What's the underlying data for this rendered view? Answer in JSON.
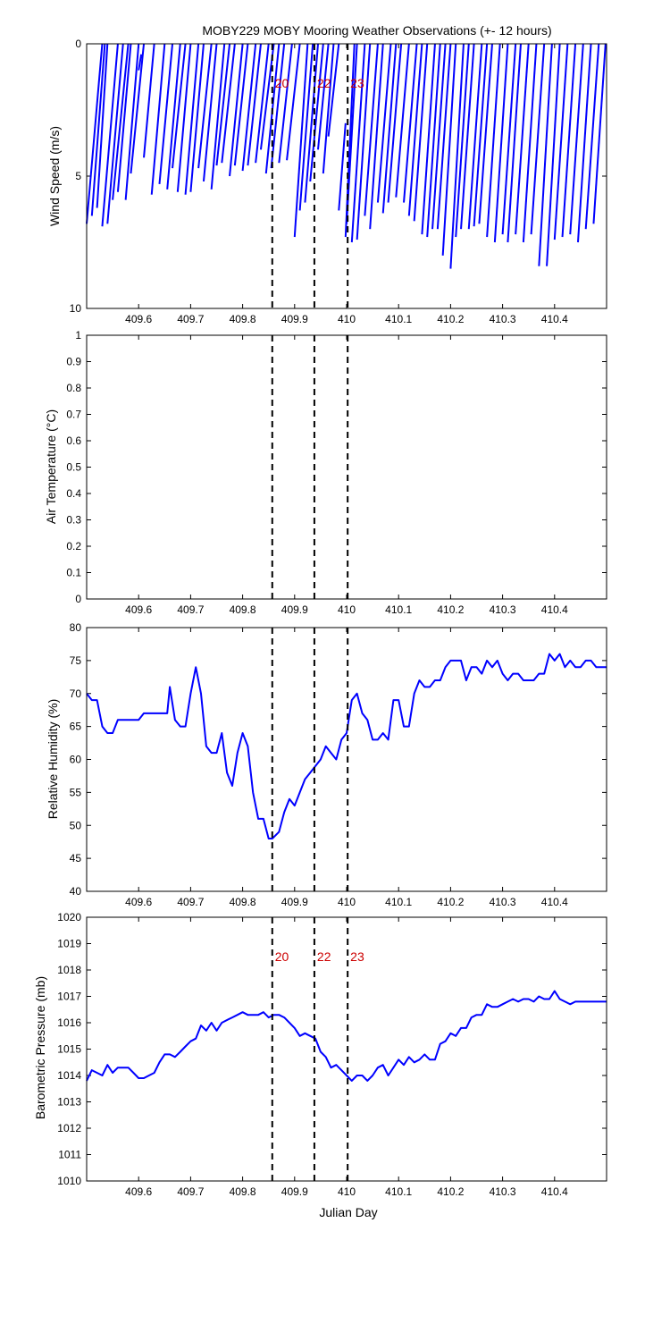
{
  "title": "MOBY229 MOBY Mooring Weather Observations (+- 12 hours)",
  "xlabel": "Julian Day",
  "colors": {
    "line": "#0000ff",
    "vline": "#000000",
    "vline_label": "#cc0000"
  },
  "event_lines": [
    {
      "x": 409.857,
      "label": "20"
    },
    {
      "x": 409.938,
      "label": "22"
    },
    {
      "x": 410.002,
      "label": "23"
    }
  ],
  "x_ticks": [
    "409.6",
    "409.7",
    "409.8",
    "409.9",
    "410",
    "410.1",
    "410.2",
    "410.3",
    "410.4"
  ],
  "chart_data": [
    {
      "type": "line",
      "id": "wind",
      "ylabel": "Wind Speed (m/s)",
      "xlim": [
        409.5,
        410.5
      ],
      "ylim": [
        0,
        10
      ],
      "y_reversed": true,
      "y_ticks": [
        "0",
        "5",
        "10"
      ],
      "show_vline_labels": true,
      "sticks": [
        [
          409.5,
          6.8,
          409.53,
          0.0
        ],
        [
          409.51,
          6.5,
          409.535,
          0.0
        ],
        [
          409.52,
          6.2,
          409.54,
          0.0
        ],
        [
          409.53,
          6.9,
          409.56,
          0.0
        ],
        [
          409.54,
          6.8,
          409.57,
          0.0
        ],
        [
          409.55,
          5.9,
          409.58,
          0.0
        ],
        [
          409.56,
          5.6,
          409.585,
          0.0
        ],
        [
          409.575,
          5.9,
          409.6,
          0.0
        ],
        [
          409.585,
          4.9,
          409.61,
          0.0
        ],
        [
          409.6,
          1.0,
          409.605,
          0.4
        ],
        [
          409.61,
          4.3,
          409.63,
          0.0
        ],
        [
          409.625,
          5.7,
          409.65,
          0.0
        ],
        [
          409.64,
          5.3,
          409.665,
          0.0
        ],
        [
          409.655,
          5.5,
          409.68,
          0.0
        ],
        [
          409.665,
          4.7,
          409.69,
          0.0
        ],
        [
          409.675,
          5.6,
          409.7,
          0.0
        ],
        [
          409.69,
          5.7,
          409.715,
          0.0
        ],
        [
          409.7,
          5.6,
          409.725,
          0.0
        ],
        [
          409.715,
          4.7,
          409.74,
          0.0
        ],
        [
          409.725,
          5.2,
          409.75,
          0.0
        ],
        [
          409.74,
          5.5,
          409.765,
          0.0
        ],
        [
          409.75,
          4.6,
          409.775,
          0.0
        ],
        [
          409.76,
          4.5,
          409.785,
          0.0
        ],
        [
          409.775,
          5.0,
          409.8,
          0.0
        ],
        [
          409.785,
          4.6,
          409.81,
          0.0
        ],
        [
          409.8,
          4.8,
          409.825,
          0.0
        ],
        [
          409.81,
          4.6,
          409.835,
          0.0
        ],
        [
          409.825,
          4.5,
          409.85,
          0.0
        ],
        [
          409.835,
          4.0,
          409.86,
          0.0
        ],
        [
          409.845,
          4.9,
          409.87,
          0.0
        ],
        [
          409.855,
          4.7,
          409.88,
          0.0
        ],
        [
          409.87,
          4.5,
          409.895,
          0.0
        ],
        [
          409.885,
          4.4,
          409.91,
          0.0
        ],
        [
          409.9,
          7.3,
          409.925,
          0.0
        ],
        [
          409.91,
          6.3,
          409.935,
          0.0
        ],
        [
          409.92,
          6.0,
          409.945,
          0.0
        ],
        [
          409.93,
          5.2,
          409.955,
          0.0
        ],
        [
          409.945,
          4.0,
          409.965,
          0.0
        ],
        [
          409.955,
          4.9,
          409.975,
          0.0
        ],
        [
          409.965,
          3.5,
          409.985,
          0.0
        ],
        [
          409.985,
          6.3,
          409.998,
          3.0
        ],
        [
          409.998,
          7.3,
          410.015,
          0.0
        ],
        [
          410.0,
          6.8,
          410.02,
          0.0
        ],
        [
          410.01,
          7.5,
          410.035,
          0.0
        ],
        [
          410.02,
          7.4,
          410.045,
          0.0
        ],
        [
          410.035,
          6.5,
          410.06,
          0.0
        ],
        [
          410.045,
          7.0,
          410.07,
          0.0
        ],
        [
          410.06,
          6.0,
          410.085,
          0.0
        ],
        [
          410.07,
          6.4,
          410.095,
          0.0
        ],
        [
          410.08,
          6.0,
          410.105,
          0.0
        ],
        [
          410.095,
          5.8,
          410.12,
          0.0
        ],
        [
          410.11,
          6.0,
          410.135,
          0.0
        ],
        [
          410.12,
          6.5,
          410.145,
          0.0
        ],
        [
          410.13,
          6.7,
          410.155,
          0.0
        ],
        [
          410.145,
          7.2,
          410.17,
          0.0
        ],
        [
          410.155,
          7.3,
          410.18,
          0.0
        ],
        [
          410.165,
          7.0,
          410.19,
          0.0
        ],
        [
          410.175,
          7.0,
          410.2,
          0.0
        ],
        [
          410.185,
          8.0,
          410.21,
          0.0
        ],
        [
          410.2,
          8.5,
          410.225,
          0.0
        ],
        [
          410.21,
          7.3,
          410.235,
          0.0
        ],
        [
          410.22,
          7.0,
          410.245,
          0.0
        ],
        [
          410.235,
          7.0,
          410.26,
          0.0
        ],
        [
          410.245,
          6.9,
          410.27,
          0.0
        ],
        [
          410.255,
          6.8,
          410.28,
          0.0
        ],
        [
          410.27,
          7.3,
          410.295,
          0.0
        ],
        [
          410.285,
          7.5,
          410.31,
          0.0
        ],
        [
          410.3,
          7.2,
          410.325,
          0.0
        ],
        [
          410.31,
          7.5,
          410.335,
          0.0
        ],
        [
          410.325,
          7.2,
          410.35,
          0.0
        ],
        [
          410.34,
          7.5,
          410.365,
          0.0
        ],
        [
          410.355,
          7.2,
          410.38,
          0.0
        ],
        [
          410.37,
          8.4,
          410.395,
          0.0
        ],
        [
          410.385,
          8.4,
          410.41,
          0.0
        ],
        [
          410.4,
          7.4,
          410.425,
          0.0
        ],
        [
          410.415,
          7.3,
          410.44,
          0.0
        ],
        [
          410.43,
          7.2,
          410.455,
          0.0
        ],
        [
          410.445,
          7.5,
          410.47,
          0.0
        ],
        [
          410.46,
          7.0,
          410.485,
          0.0
        ],
        [
          410.475,
          6.8,
          410.498,
          0.0
        ]
      ]
    },
    {
      "type": "line",
      "id": "airtemp",
      "ylabel": "Air Temperature (°C)",
      "xlim": [
        409.5,
        410.5
      ],
      "ylim": [
        0,
        1
      ],
      "y_ticks": [
        "0",
        "0.1",
        "0.2",
        "0.3",
        "0.4",
        "0.5",
        "0.6",
        "0.7",
        "0.8",
        "0.9",
        "1"
      ],
      "x": [],
      "y": []
    },
    {
      "type": "line",
      "id": "rh",
      "ylabel": "Relative Humidity (%)",
      "xlim": [
        409.5,
        410.5
      ],
      "ylim": [
        40,
        80
      ],
      "y_ticks": [
        "40",
        "45",
        "50",
        "55",
        "60",
        "65",
        "70",
        "75",
        "80"
      ],
      "x": [
        409.5,
        409.51,
        409.52,
        409.53,
        409.54,
        409.55,
        409.56,
        409.57,
        409.58,
        409.6,
        409.61,
        409.62,
        409.65,
        409.655,
        409.66,
        409.67,
        409.68,
        409.69,
        409.7,
        409.71,
        409.72,
        409.73,
        409.74,
        409.75,
        409.76,
        409.77,
        409.78,
        409.79,
        409.8,
        409.81,
        409.82,
        409.83,
        409.84,
        409.85,
        409.857,
        409.87,
        409.88,
        409.89,
        409.9,
        409.91,
        409.92,
        409.93,
        409.94,
        409.95,
        409.96,
        409.97,
        409.98,
        409.99,
        410.0,
        410.01,
        410.02,
        410.03,
        410.04,
        410.05,
        410.06,
        410.07,
        410.08,
        410.09,
        410.1,
        410.11,
        410.12,
        410.13,
        410.14,
        410.15,
        410.16,
        410.17,
        410.18,
        410.19,
        410.2,
        410.21,
        410.22,
        410.23,
        410.24,
        410.25,
        410.26,
        410.27,
        410.28,
        410.29,
        410.3,
        410.31,
        410.32,
        410.33,
        410.34,
        410.35,
        410.36,
        410.37,
        410.38,
        410.39,
        410.4,
        410.41,
        410.42,
        410.43,
        410.44,
        410.45,
        410.46,
        410.47,
        410.48,
        410.49,
        410.5
      ],
      "y": [
        70,
        69,
        69,
        65,
        64,
        64,
        66,
        66,
        66,
        66,
        67,
        67,
        67,
        67,
        71,
        66,
        65,
        65,
        70,
        74,
        70,
        62,
        61,
        61,
        64,
        58,
        56,
        61,
        64,
        62,
        55,
        51,
        51,
        48,
        48,
        49,
        52,
        54,
        53,
        55,
        57,
        58,
        59,
        60,
        62,
        61,
        60,
        63,
        64,
        69,
        70,
        67,
        66,
        63,
        63,
        64,
        63,
        69,
        69,
        65,
        65,
        70,
        72,
        71,
        71,
        72,
        72,
        74,
        75,
        75,
        75,
        72,
        74,
        74,
        73,
        75,
        74,
        75,
        73,
        72,
        73,
        73,
        72,
        72,
        72,
        73,
        73,
        76,
        75,
        76,
        74,
        75,
        74,
        74,
        75,
        75,
        74,
        74,
        74
      ]
    },
    {
      "type": "line",
      "id": "pressure",
      "ylabel": "Barometric Pressure (mb)",
      "xlim": [
        409.5,
        410.5
      ],
      "ylim": [
        1010,
        1020
      ],
      "y_ticks": [
        "1010",
        "1011",
        "1012",
        "1013",
        "1014",
        "1015",
        "1016",
        "1017",
        "1018",
        "1019",
        "1020"
      ],
      "show_vline_labels": true,
      "x": [
        409.5,
        409.51,
        409.52,
        409.53,
        409.54,
        409.55,
        409.56,
        409.57,
        409.58,
        409.59,
        409.6,
        409.61,
        409.62,
        409.63,
        409.64,
        409.65,
        409.66,
        409.67,
        409.68,
        409.69,
        409.7,
        409.71,
        409.72,
        409.73,
        409.74,
        409.75,
        409.76,
        409.77,
        409.78,
        409.79,
        409.8,
        409.81,
        409.82,
        409.83,
        409.84,
        409.85,
        409.86,
        409.87,
        409.88,
        409.89,
        409.9,
        409.91,
        409.92,
        409.93,
        409.94,
        409.95,
        409.96,
        409.97,
        409.98,
        409.99,
        410.0,
        410.01,
        410.02,
        410.03,
        410.04,
        410.05,
        410.06,
        410.07,
        410.08,
        410.09,
        410.1,
        410.11,
        410.12,
        410.13,
        410.14,
        410.15,
        410.16,
        410.17,
        410.18,
        410.19,
        410.2,
        410.21,
        410.22,
        410.23,
        410.24,
        410.25,
        410.26,
        410.27,
        410.28,
        410.29,
        410.3,
        410.31,
        410.32,
        410.33,
        410.34,
        410.35,
        410.36,
        410.37,
        410.38,
        410.39,
        410.4,
        410.41,
        410.42,
        410.43,
        410.44,
        410.45,
        410.46,
        410.47,
        410.48,
        410.49,
        410.5
      ],
      "y": [
        1013.8,
        1014.2,
        1014.1,
        1014.0,
        1014.4,
        1014.1,
        1014.3,
        1014.3,
        1014.3,
        1014.1,
        1013.9,
        1013.9,
        1014.0,
        1014.1,
        1014.5,
        1014.8,
        1014.8,
        1014.7,
        1014.9,
        1015.1,
        1015.3,
        1015.4,
        1015.9,
        1015.7,
        1016.0,
        1015.7,
        1016.0,
        1016.1,
        1016.2,
        1016.3,
        1016.4,
        1016.3,
        1016.3,
        1016.3,
        1016.4,
        1016.2,
        1016.3,
        1016.3,
        1016.2,
        1016.0,
        1015.8,
        1015.5,
        1015.6,
        1015.5,
        1015.4,
        1014.9,
        1014.7,
        1014.3,
        1014.4,
        1014.2,
        1014.0,
        1013.8,
        1014.0,
        1014.0,
        1013.8,
        1014.0,
        1014.3,
        1014.4,
        1014.0,
        1014.3,
        1014.6,
        1014.4,
        1014.7,
        1014.5,
        1014.6,
        1014.8,
        1014.6,
        1014.6,
        1015.2,
        1015.3,
        1015.6,
        1015.5,
        1015.8,
        1015.8,
        1016.2,
        1016.3,
        1016.3,
        1016.7,
        1016.6,
        1016.6,
        1016.7,
        1016.8,
        1016.9,
        1016.8,
        1016.9,
        1016.9,
        1016.8,
        1017.0,
        1016.9,
        1016.9,
        1017.2,
        1016.9,
        1016.8,
        1016.7,
        1016.8,
        1016.8,
        1016.8,
        1016.8,
        1016.8,
        1016.8,
        1016.8
      ]
    }
  ]
}
